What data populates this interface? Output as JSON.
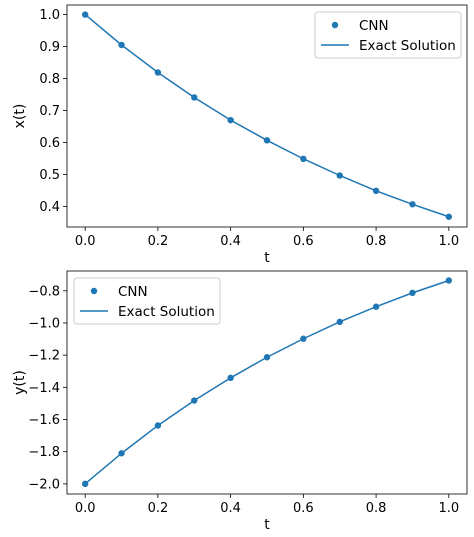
{
  "colors": {
    "series": "#1f77b4"
  },
  "chart_data": [
    {
      "type": "line",
      "xlabel": "t",
      "ylabel": "x(t)",
      "xlim": [
        -0.05,
        1.05
      ],
      "ylim": [
        0.336,
        1.03
      ],
      "xticks": [
        0.0,
        0.2,
        0.4,
        0.6,
        0.8,
        1.0
      ],
      "xtick_labels": [
        "0.0",
        "0.2",
        "0.4",
        "0.6",
        "0.8",
        "1.0"
      ],
      "yticks": [
        0.4,
        0.5,
        0.6,
        0.7,
        0.8,
        0.9,
        1.0
      ],
      "ytick_labels": [
        "0.4",
        "0.5",
        "0.6",
        "0.7",
        "0.8",
        "0.9",
        "1.0"
      ],
      "legend": {
        "position": "top-right",
        "entries": [
          "CNN",
          "Exact Solution"
        ]
      },
      "series": [
        {
          "name": "CNN",
          "style": "scatter",
          "x": [
            0.0,
            0.1,
            0.2,
            0.3,
            0.4,
            0.5,
            0.6,
            0.7,
            0.8,
            0.9,
            1.0
          ],
          "y": [
            1.0,
            0.905,
            0.819,
            0.741,
            0.67,
            0.607,
            0.549,
            0.497,
            0.449,
            0.407,
            0.368
          ]
        },
        {
          "name": "Exact Solution",
          "style": "line",
          "x": [
            0.0,
            0.1,
            0.2,
            0.3,
            0.4,
            0.5,
            0.6,
            0.7,
            0.8,
            0.9,
            1.0
          ],
          "y": [
            1.0,
            0.905,
            0.819,
            0.741,
            0.67,
            0.607,
            0.549,
            0.497,
            0.449,
            0.407,
            0.368
          ]
        }
      ]
    },
    {
      "type": "line",
      "xlabel": "t",
      "ylabel": "y(t)",
      "xlim": [
        -0.05,
        1.05
      ],
      "ylim": [
        -2.063,
        -0.677
      ],
      "xticks": [
        0.0,
        0.2,
        0.4,
        0.6,
        0.8,
        1.0
      ],
      "xtick_labels": [
        "0.0",
        "0.2",
        "0.4",
        "0.6",
        "0.8",
        "1.0"
      ],
      "yticks": [
        -2.0,
        -1.8,
        -1.6,
        -1.4,
        -1.2,
        -1.0,
        -0.8
      ],
      "ytick_labels": [
        "−2.0",
        "−1.8",
        "−1.6",
        "−1.4",
        "−1.2",
        "−1.0",
        "−0.8"
      ],
      "legend": {
        "position": "top-left",
        "entries": [
          "CNN",
          "Exact Solution"
        ]
      },
      "series": [
        {
          "name": "CNN",
          "style": "scatter",
          "x": [
            0.0,
            0.1,
            0.2,
            0.3,
            0.4,
            0.5,
            0.6,
            0.7,
            0.8,
            0.9,
            1.0
          ],
          "y": [
            -2.0,
            -1.81,
            -1.637,
            -1.482,
            -1.341,
            -1.213,
            -1.098,
            -0.993,
            -0.899,
            -0.813,
            -0.736
          ]
        },
        {
          "name": "Exact Solution",
          "style": "line",
          "x": [
            0.0,
            0.1,
            0.2,
            0.3,
            0.4,
            0.5,
            0.6,
            0.7,
            0.8,
            0.9,
            1.0
          ],
          "y": [
            -2.0,
            -1.81,
            -1.637,
            -1.482,
            -1.341,
            -1.213,
            -1.098,
            -0.993,
            -0.899,
            -0.813,
            -0.736
          ]
        }
      ]
    }
  ]
}
